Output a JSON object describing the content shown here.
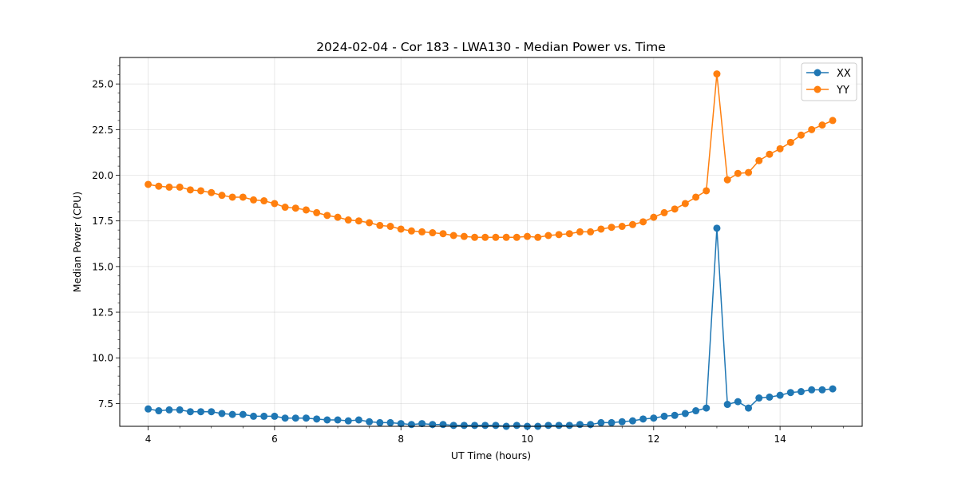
{
  "chart_data": {
    "type": "line",
    "title": "2024-02-04 - Cor 183 - LWA130 - Median Power vs. Time",
    "xlabel": "UT Time (hours)",
    "ylabel": "Median Power (CPU)",
    "xlim": [
      3.55,
      15.3
    ],
    "ylim": [
      6.25,
      26.45
    ],
    "xticks": [
      4,
      6,
      8,
      10,
      12,
      14
    ],
    "yticks": [
      7.5,
      10.0,
      12.5,
      15.0,
      17.5,
      20.0,
      22.5,
      25.0
    ],
    "xtick_labels": [
      "4",
      "6",
      "8",
      "10",
      "12",
      "14"
    ],
    "ytick_labels": [
      "7.5",
      "10.0",
      "12.5",
      "15.0",
      "17.5",
      "20.0",
      "22.5",
      "25.0"
    ],
    "grid": true,
    "legend_position": "top-right",
    "x": [
      4.0,
      4.167,
      4.333,
      4.5,
      4.667,
      4.833,
      5.0,
      5.167,
      5.333,
      5.5,
      5.667,
      5.833,
      6.0,
      6.167,
      6.333,
      6.5,
      6.667,
      6.833,
      7.0,
      7.167,
      7.333,
      7.5,
      7.667,
      7.833,
      8.0,
      8.167,
      8.333,
      8.5,
      8.667,
      8.833,
      9.0,
      9.167,
      9.333,
      9.5,
      9.667,
      9.833,
      10.0,
      10.167,
      10.333,
      10.5,
      10.667,
      10.833,
      11.0,
      11.167,
      11.333,
      11.5,
      11.667,
      11.833,
      12.0,
      12.167,
      12.333,
      12.5,
      12.667,
      12.833,
      13.0,
      13.167,
      13.333,
      13.5,
      13.667,
      13.833,
      14.0,
      14.167,
      14.333,
      14.5,
      14.667,
      14.833
    ],
    "series": [
      {
        "name": "XX",
        "color": "#1f77b4",
        "values": [
          7.2,
          7.1,
          7.15,
          7.15,
          7.05,
          7.05,
          7.05,
          6.95,
          6.9,
          6.9,
          6.8,
          6.8,
          6.8,
          6.7,
          6.7,
          6.7,
          6.65,
          6.6,
          6.6,
          6.55,
          6.6,
          6.5,
          6.45,
          6.45,
          6.4,
          6.35,
          6.4,
          6.35,
          6.35,
          6.3,
          6.3,
          6.3,
          6.3,
          6.3,
          6.25,
          6.3,
          6.25,
          6.25,
          6.3,
          6.3,
          6.3,
          6.35,
          6.35,
          6.45,
          6.45,
          6.5,
          6.55,
          6.65,
          6.7,
          6.8,
          6.85,
          6.95,
          7.1,
          7.25,
          17.1,
          7.45,
          7.6,
          7.25,
          7.8,
          7.85,
          7.95,
          8.1,
          8.15,
          8.25,
          8.25,
          8.3
        ]
      },
      {
        "name": "YY",
        "color": "#ff7f0e",
        "values": [
          19.5,
          19.4,
          19.35,
          19.35,
          19.2,
          19.15,
          19.05,
          18.9,
          18.8,
          18.8,
          18.65,
          18.6,
          18.45,
          18.25,
          18.2,
          18.1,
          17.95,
          17.8,
          17.7,
          17.55,
          17.5,
          17.4,
          17.25,
          17.2,
          17.05,
          16.95,
          16.9,
          16.85,
          16.8,
          16.7,
          16.65,
          16.6,
          16.6,
          16.6,
          16.6,
          16.6,
          16.65,
          16.6,
          16.7,
          16.75,
          16.8,
          16.9,
          16.9,
          17.05,
          17.15,
          17.2,
          17.3,
          17.45,
          17.7,
          17.95,
          18.15,
          18.45,
          18.8,
          19.15,
          25.55,
          19.75,
          20.1,
          20.15,
          20.8,
          21.15,
          21.45,
          21.8,
          22.2,
          22.5,
          22.75,
          23.0
        ]
      }
    ]
  }
}
